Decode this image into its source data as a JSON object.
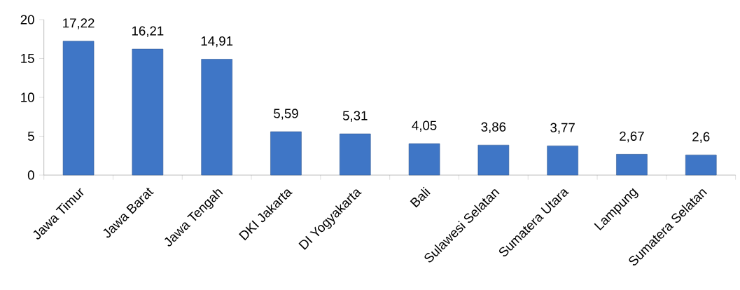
{
  "chart_data": {
    "type": "bar",
    "categories": [
      "Jawa Timur",
      "Jawa Barat",
      "Jawa Tengah",
      "DKI Jakarta",
      "DI Yogyakarta",
      "Bali",
      "Sulawesi Selatan",
      "Sumatera Utara",
      "Lampung",
      "Sumatera Selatan"
    ],
    "values": [
      17.22,
      16.21,
      14.91,
      5.59,
      5.31,
      4.05,
      3.86,
      3.77,
      2.67,
      2.6
    ],
    "value_labels": [
      "17,22",
      "16,21",
      "14,91",
      "5,59",
      "5,31",
      "4,05",
      "3,86",
      "3,77",
      "2,67",
      "2,6"
    ],
    "color": "#3f76c6",
    "ylim": [
      0,
      20
    ],
    "yticks": [
      0,
      5,
      10,
      15,
      20
    ]
  }
}
